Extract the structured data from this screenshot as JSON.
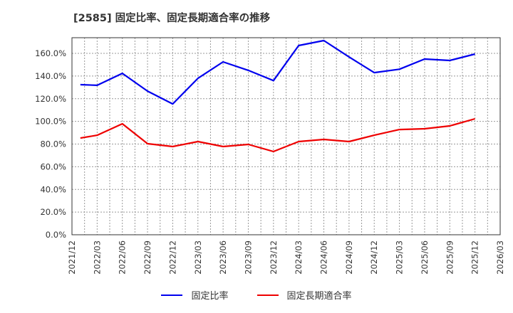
{
  "title": "[2585]  固定比率、固定長期適合率の推移",
  "legend": [
    {
      "label": "固定比率",
      "color": "#0000ee"
    },
    {
      "label": "固定長期適合率",
      "color": "#ee0000"
    }
  ],
  "chart_data": {
    "type": "line",
    "title": "[2585] 固定比率、固定長期適合率の推移",
    "xlabel": "",
    "ylabel": "",
    "ylim": [
      0,
      175
    ],
    "yticks": [
      "0.0%",
      "20.0%",
      "40.0%",
      "60.0%",
      "80.0%",
      "100.0%",
      "120.0%",
      "140.0%",
      "160.0%"
    ],
    "xticks": [
      "2021/12",
      "2022/03",
      "2022/06",
      "2022/09",
      "2022/12",
      "2023/03",
      "2023/06",
      "2023/09",
      "2023/12",
      "2024/03",
      "2024/06",
      "2024/09",
      "2024/12",
      "2025/03",
      "2025/06",
      "2025/09",
      "2025/12",
      "2026/03"
    ],
    "grid": true,
    "legend_position": "bottom",
    "x": [
      "2022/01",
      "2022/03",
      "2022/06",
      "2022/09",
      "2022/12",
      "2023/03",
      "2023/06",
      "2023/09",
      "2023/12",
      "2024/03",
      "2024/06",
      "2024/09",
      "2024/12",
      "2025/03",
      "2025/06",
      "2025/09",
      "2025/12"
    ],
    "series": [
      {
        "name": "固定比率",
        "color": "#0000ee",
        "values": [
          132.4,
          131.8,
          142.4,
          126.7,
          115.4,
          138.0,
          152.5,
          145.0,
          136.0,
          166.9,
          171.3,
          156.8,
          143.0,
          146.0,
          155.0,
          153.7,
          159.4
        ]
      },
      {
        "name": "固定長期適合率",
        "color": "#ee0000",
        "values": [
          85.3,
          87.8,
          97.9,
          80.3,
          77.8,
          82.2,
          77.8,
          79.7,
          73.4,
          82.2,
          84.1,
          82.2,
          87.8,
          92.8,
          93.5,
          96.0,
          102.3
        ]
      }
    ]
  }
}
